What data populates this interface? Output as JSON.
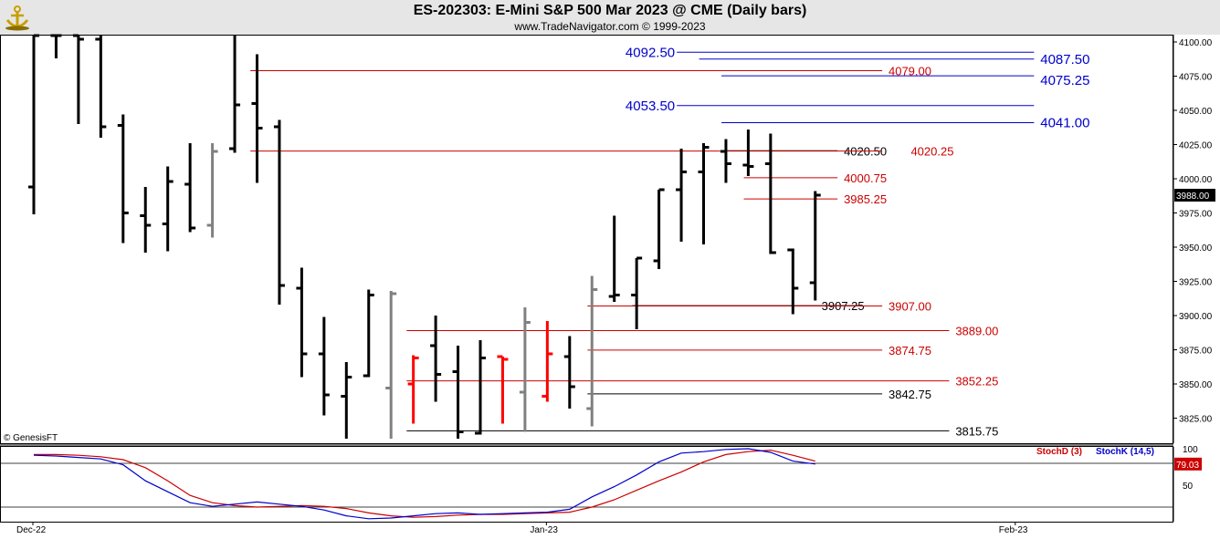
{
  "header": {
    "title": "ES-202303:  E-Mini S&P 500 Mar 2023 @ CME  (Daily bars)",
    "subtitle": "www.TradeNavigator.com © 1999-2023"
  },
  "footer": {
    "copyright": "© GenesisFT"
  },
  "colors": {
    "up": "#000000",
    "down": "#000000",
    "inside": "#808080",
    "outside": "#ff0000",
    "stochD": "#cc0000",
    "stochK": "#0000cc",
    "levelRed": "#cc0000",
    "levelBlue": "#0000cc",
    "levelBlack": "#000000"
  },
  "chart_data": [
    {
      "type": "ohlc",
      "xlabels": [
        {
          "label": "Dec-22",
          "bar": 0
        },
        {
          "label": "Jan-23",
          "bar": 23
        },
        {
          "label": "Feb-23",
          "bar": 44
        }
      ],
      "ylim": [
        3810,
        4105
      ],
      "yticks": [
        3825,
        3850,
        3875,
        3900,
        3925,
        3950,
        3975,
        4000,
        4025,
        4050,
        4075,
        4100
      ],
      "last_price": "3988.00",
      "bars": [
        {
          "o": 3994,
          "h": 4105,
          "l": 3974,
          "c": 4105,
          "k": "up"
        },
        {
          "o": 4105,
          "h": 4105,
          "l": 4088,
          "c": 4105,
          "k": "up"
        },
        {
          "o": 4105,
          "h": 4105,
          "l": 4040,
          "c": 4102,
          "k": "up"
        },
        {
          "o": 4102,
          "h": 4105,
          "l": 4030,
          "c": 4038,
          "k": "up"
        },
        {
          "o": 4039,
          "h": 4047,
          "l": 3953,
          "c": 3975,
          "k": "up"
        },
        {
          "o": 3973,
          "h": 3994,
          "l": 3946,
          "c": 3966,
          "k": "up"
        },
        {
          "o": 3967,
          "h": 4009,
          "l": 3947,
          "c": 3998,
          "k": "up"
        },
        {
          "o": 3996,
          "h": 4026,
          "l": 3961,
          "c": 3964,
          "k": "up"
        },
        {
          "o": 3966,
          "h": 4026,
          "l": 3957,
          "c": 4020,
          "k": "inside"
        },
        {
          "o": 4022,
          "h": 4105,
          "l": 4019,
          "c": 4054,
          "k": "up"
        },
        {
          "o": 4055,
          "h": 4091,
          "l": 3997,
          "c": 4037,
          "k": "up"
        },
        {
          "o": 4038,
          "h": 4043,
          "l": 3908,
          "c": 3922,
          "k": "down"
        },
        {
          "o": 3920,
          "h": 3935,
          "l": 3855,
          "c": 3872,
          "k": "down"
        },
        {
          "o": 3872,
          "h": 3899,
          "l": 3827,
          "c": 3842,
          "k": "down"
        },
        {
          "o": 3841,
          "h": 3866,
          "l": 3810,
          "c": 3855,
          "k": "up"
        },
        {
          "o": 3856,
          "h": 3919,
          "l": 3855,
          "c": 3915,
          "k": "up"
        },
        {
          "o": 3847,
          "h": 3918,
          "l": 3810,
          "c": 3916,
          "k": "inside"
        },
        {
          "o": 3850,
          "h": 3871,
          "l": 3821,
          "c": 3869,
          "k": "outside"
        },
        {
          "o": 3878,
          "h": 3900,
          "l": 3837,
          "c": 3857,
          "k": "down"
        },
        {
          "o": 3859,
          "h": 3878,
          "l": 3810,
          "c": 3815,
          "k": "down"
        },
        {
          "o": 3814,
          "h": 3882,
          "l": 3813,
          "c": 3869,
          "k": "up"
        },
        {
          "o": 3870,
          "h": 3870,
          "l": 3821,
          "c": 3868,
          "k": "outside"
        },
        {
          "o": 3844,
          "h": 3906,
          "l": 3815,
          "c": 3895,
          "k": "inside"
        },
        {
          "o": 3841,
          "h": 3896,
          "l": 3837,
          "c": 3872,
          "k": "outside"
        },
        {
          "o": 3870,
          "h": 3885,
          "l": 3832,
          "c": 3848,
          "k": "down"
        },
        {
          "o": 3832,
          "h": 3929,
          "l": 3819,
          "c": 3919,
          "k": "inside"
        },
        {
          "o": 3914,
          "h": 3973,
          "l": 3910,
          "c": 3915,
          "k": "up"
        },
        {
          "o": 3915,
          "h": 3942,
          "l": 3890,
          "c": 3942,
          "k": "up"
        },
        {
          "o": 3940,
          "h": 3992,
          "l": 3934,
          "c": 3992,
          "k": "up"
        },
        {
          "o": 3992,
          "h": 4022,
          "l": 3954,
          "c": 4005,
          "k": "up"
        },
        {
          "o": 4005,
          "h": 4026,
          "l": 3952,
          "c": 4023,
          "k": "up"
        },
        {
          "o": 4020,
          "h": 4029,
          "l": 3997,
          "c": 4011,
          "k": "down"
        },
        {
          "o": 4010,
          "h": 4036,
          "l": 4002,
          "c": 4009,
          "k": "down"
        },
        {
          "o": 4011,
          "h": 4033,
          "l": 3945,
          "c": 3946,
          "k": "down"
        },
        {
          "o": 3948,
          "h": 3949,
          "l": 3901,
          "c": 3920,
          "k": "down"
        },
        {
          "o": 3924,
          "h": 3991,
          "l": 3911,
          "c": 3988,
          "k": "up"
        }
      ],
      "levels": [
        {
          "label": "4092.50",
          "value": 4092.5,
          "color": "blue",
          "fromBar": 28.8,
          "toBar": 44.8,
          "labelAtBar": 28.8,
          "labelAlign": "right",
          "offset": 0,
          "size": 15
        },
        {
          "label": "4087.50",
          "value": 4087.5,
          "color": "blue",
          "fromBar": 29.8,
          "toBar": 44.8,
          "labelAtBar": 45.0,
          "labelAlign": "left",
          "offset": 0,
          "size": 15
        },
        {
          "label": "4079.00",
          "value": 4079,
          "color": "red",
          "fromBar": 9.7,
          "toBar": 38.0,
          "labelAtBar": 38.2,
          "labelAlign": "left",
          "offset": 0,
          "size": 13
        },
        {
          "label": "4075.25",
          "value": 4075.25,
          "color": "blue",
          "fromBar": 30.8,
          "toBar": 44.8,
          "labelAtBar": 45.0,
          "labelAlign": "left",
          "offset": 5,
          "size": 15
        },
        {
          "label": "4053.50",
          "value": 4053.5,
          "color": "blue",
          "fromBar": 28.8,
          "toBar": 44.8,
          "labelAtBar": 28.8,
          "labelAlign": "right",
          "offset": 0,
          "size": 15
        },
        {
          "label": "4041.00",
          "value": 4041,
          "color": "blue",
          "fromBar": 30.8,
          "toBar": 44.8,
          "labelAtBar": 45.0,
          "labelAlign": "left",
          "offset": 0,
          "size": 15
        },
        {
          "label": "4020.50",
          "value": 4020.5,
          "color": "black",
          "fromBar": 30.8,
          "toBar": 36.0,
          "labelAtBar": 36.2,
          "labelAlign": "left",
          "offset": 0,
          "size": 13
        },
        {
          "label": "4020.25",
          "value": 4020.25,
          "color": "red",
          "fromBar": 9.7,
          "toBar": 38.0,
          "labelAtBar": 39.2,
          "labelAlign": "left",
          "offset": 0,
          "size": 13
        },
        {
          "label": "4000.75",
          "value": 4000.75,
          "color": "red",
          "fromBar": 31.8,
          "toBar": 36.0,
          "labelAtBar": 36.2,
          "labelAlign": "left",
          "offset": 0,
          "size": 13
        },
        {
          "label": "3985.25",
          "value": 3985.25,
          "color": "red",
          "fromBar": 31.8,
          "toBar": 36.0,
          "labelAtBar": 36.2,
          "labelAlign": "left",
          "offset": 0,
          "size": 13
        },
        {
          "label": "3907.25",
          "value": 3907.25,
          "color": "black",
          "fromBar": 26.8,
          "toBar": 37.0,
          "labelAtBar": 35.2,
          "labelAlign": "left",
          "offset": 0,
          "size": 13
        },
        {
          "label": "3907.00",
          "value": 3907,
          "color": "red",
          "fromBar": 24.8,
          "toBar": 38.0,
          "labelAtBar": 38.2,
          "labelAlign": "left",
          "offset": 0,
          "size": 13
        },
        {
          "label": "3889.00",
          "value": 3889,
          "color": "red",
          "fromBar": 16.7,
          "toBar": 41.0,
          "labelAtBar": 41.2,
          "labelAlign": "left",
          "offset": 0,
          "size": 13
        },
        {
          "label": "3874.75",
          "value": 3874.75,
          "color": "red",
          "fromBar": 24.8,
          "toBar": 38.0,
          "labelAtBar": 38.2,
          "labelAlign": "left",
          "offset": 0,
          "size": 13
        },
        {
          "label": "3852.25",
          "value": 3852.25,
          "color": "red",
          "fromBar": 16.7,
          "toBar": 41.0,
          "labelAtBar": 41.2,
          "labelAlign": "left",
          "offset": 0,
          "size": 13
        },
        {
          "label": "3842.75",
          "value": 3842.75,
          "color": "black",
          "fromBar": 24.8,
          "toBar": 38.0,
          "labelAtBar": 38.2,
          "labelAlign": "left",
          "offset": 0,
          "size": 13
        },
        {
          "label": "3815.75",
          "value": 3815.75,
          "color": "black",
          "fromBar": 16.7,
          "toBar": 41.0,
          "labelAtBar": 41.2,
          "labelAlign": "left",
          "offset": 0,
          "size": 13
        }
      ]
    },
    {
      "type": "line",
      "legend": [
        "StochD (3)",
        "StochK (14,5)"
      ],
      "ylim": [
        0,
        100
      ],
      "yticks": [
        50,
        100
      ],
      "reference_lines": [
        80,
        20
      ],
      "last_value": "79.03",
      "series": [
        {
          "name": "StochD (3)",
          "values": [
            92,
            92,
            91,
            89,
            85,
            74,
            56,
            36,
            26,
            22,
            20,
            21,
            22,
            21,
            18,
            12,
            8,
            6,
            7,
            9,
            10,
            10,
            11,
            12,
            13,
            20,
            30,
            43,
            56,
            68,
            82,
            92,
            96,
            98,
            91,
            83
          ]
        },
        {
          "name": "StochK (14,5)",
          "values": [
            91,
            90,
            88,
            86,
            78,
            56,
            41,
            26,
            21,
            24,
            27,
            24,
            21,
            16,
            8,
            4,
            5,
            8,
            11,
            12,
            10,
            11,
            12,
            13,
            17,
            34,
            48,
            64,
            82,
            94,
            96,
            99,
            100,
            95,
            83,
            79
          ]
        }
      ]
    }
  ]
}
